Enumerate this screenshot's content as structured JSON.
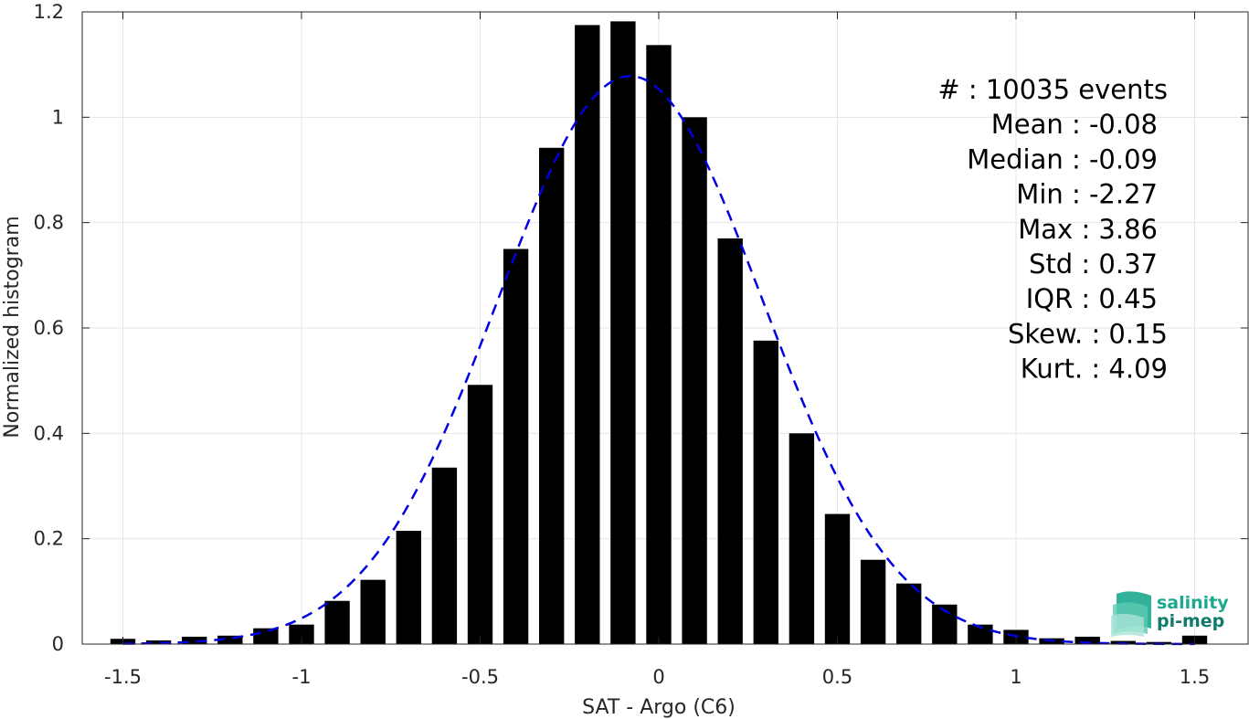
{
  "chart_data": {
    "type": "bar",
    "xlabel": "SAT - Argo (C6)",
    "ylabel": "Normalized histogram",
    "xlim": [
      -1.55,
      1.6
    ],
    "ylim": [
      0,
      1.2
    ],
    "grid": true,
    "x_ticks": [
      -1.5,
      -1,
      -0.5,
      0,
      0.5,
      1,
      1.5
    ],
    "x_tick_labels": [
      "-1.5",
      "-1",
      "-0.5",
      "0",
      "0.5",
      "1",
      "1.5"
    ],
    "y_ticks": [
      0,
      0.2,
      0.4,
      0.6,
      0.8,
      1,
      1.2
    ],
    "y_tick_labels": [
      "0",
      "0.2",
      "0.4",
      "0.6",
      "0.8",
      "1",
      "1.2"
    ],
    "bar_width": 0.07,
    "bars": {
      "x": [
        -1.5,
        -1.4,
        -1.3,
        -1.2,
        -1.1,
        -1.0,
        -0.9,
        -0.8,
        -0.7,
        -0.6,
        -0.5,
        -0.4,
        -0.3,
        -0.2,
        -0.1,
        0.0,
        0.1,
        0.2,
        0.3,
        0.4,
        0.5,
        0.6,
        0.7,
        0.8,
        0.9,
        1.0,
        1.1,
        1.2,
        1.3,
        1.4,
        1.5
      ],
      "values": [
        0.01,
        0.007,
        0.014,
        0.016,
        0.03,
        0.037,
        0.082,
        0.122,
        0.215,
        0.335,
        0.492,
        0.75,
        0.942,
        1.175,
        1.182,
        1.137,
        1.0,
        0.77,
        0.576,
        0.4,
        0.247,
        0.16,
        0.115,
        0.075,
        0.037,
        0.027,
        0.011,
        0.014,
        0.006,
        0.004,
        0.016
      ],
      "color": "#000000"
    },
    "fit_curve": {
      "style": "dashed",
      "color": "#0000e0",
      "mean": -0.08,
      "std": 0.37,
      "x_range": [
        -1.5,
        1.5
      ]
    },
    "stats": [
      {
        "text": "#  : 10035 events",
        "anchor": "end",
        "right": 1278
      },
      {
        "text": "Mean : -0.08",
        "anchor": "end",
        "right": 1267
      },
      {
        "text": "Median : -0.09",
        "anchor": "end",
        "right": 1267
      },
      {
        "text": "Min : -2.27",
        "anchor": "end",
        "right": 1267
      },
      {
        "text": "Max : 3.86",
        "anchor": "end",
        "right": 1267
      },
      {
        "text": "Std : 0.37",
        "anchor": "end",
        "right": 1267
      },
      {
        "text": "IQR : 0.45",
        "anchor": "end",
        "right": 1267
      },
      {
        "text": "Skew. : 0.15",
        "anchor": "end",
        "right": 1278
      },
      {
        "text": "Kurt. : 4.09",
        "anchor": "end",
        "right": 1278
      }
    ]
  },
  "logo": {
    "line1": "salinity",
    "line2": "pi-mep",
    "color1": "#1ba88f",
    "color2": "#127a6a"
  }
}
